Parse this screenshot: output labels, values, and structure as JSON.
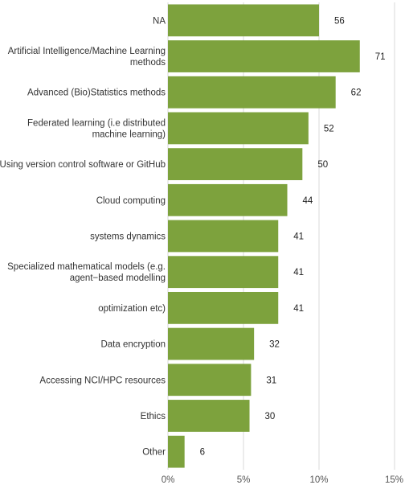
{
  "chart_data": {
    "type": "bar",
    "orientation": "horizontal",
    "title": "",
    "xlabel": "",
    "ylabel": "",
    "bar_color": "#7da23d",
    "grid": true,
    "x_ticks": [
      "0%",
      "5%",
      "10%",
      "15%"
    ],
    "xlim": [
      0,
      15
    ],
    "categories": [
      [
        "NA"
      ],
      [
        "Artificial Intelligence/Machine Learning",
        "methods"
      ],
      [
        "Advanced (Bio)Statistics methods"
      ],
      [
        "Federated learning (i.e distributed",
        "machine learning)"
      ],
      [
        "Using version control software or GitHub"
      ],
      [
        "Cloud computing"
      ],
      [
        "systems dynamics"
      ],
      [
        "Specialized mathematical models (e.g.",
        "agent−based modelling"
      ],
      [
        "optimization etc)"
      ],
      [
        "Data encryption"
      ],
      [
        "Accessing NCI/HPC resources"
      ],
      [
        "Ethics"
      ],
      [
        "Other"
      ]
    ],
    "values": [
      56,
      71,
      62,
      52,
      50,
      44,
      41,
      41,
      41,
      32,
      31,
      30,
      6
    ],
    "percent": [
      10.0,
      12.7,
      11.1,
      9.3,
      8.9,
      7.9,
      7.3,
      7.3,
      7.3,
      5.7,
      5.5,
      5.4,
      1.1
    ]
  }
}
